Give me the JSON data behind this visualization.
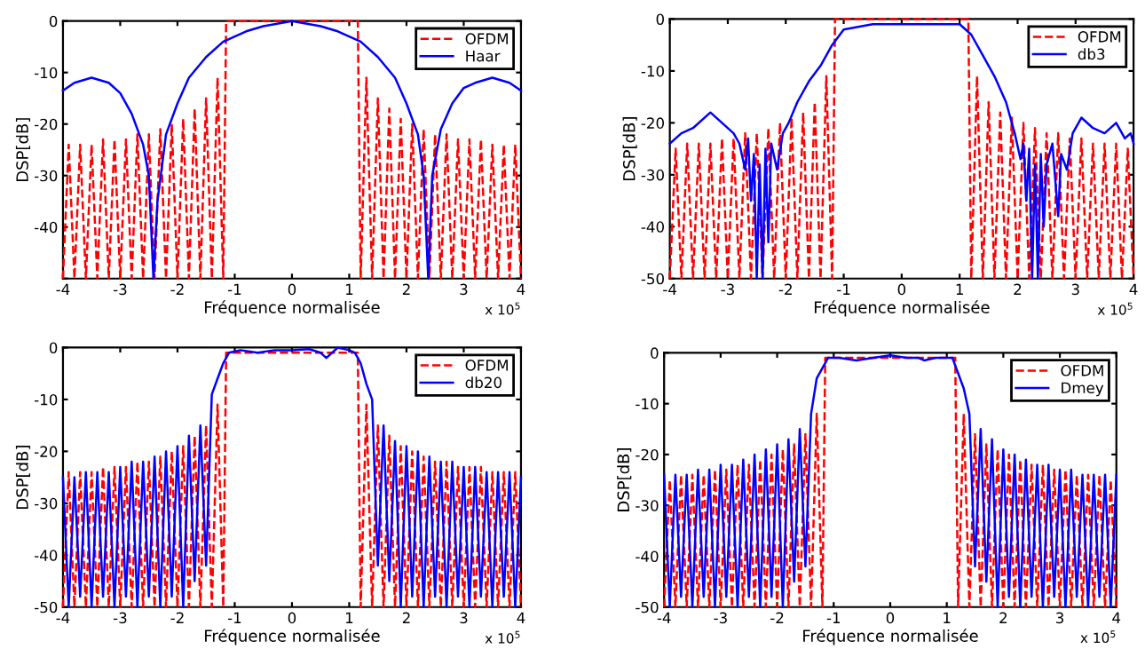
{
  "chart_data": [
    {
      "type": "line",
      "xlabel": "Fréquence normalisée",
      "ylabel": "DSP[dB]",
      "xlim": [
        -4,
        4
      ],
      "xticks": [
        -4,
        -3,
        -2,
        -1,
        0,
        1,
        2,
        3,
        4
      ],
      "ylim": [
        -50,
        0
      ],
      "yticks": [
        {
          "value": -50,
          "label": null
        },
        -40,
        -30,
        -20,
        -10,
        0
      ],
      "grid": false,
      "legend": "top right",
      "annotations": [
        "x 10$^{5}$"
      ],
      "series": [
        {
          "name": "OFDM",
          "color": "#ff0000",
          "line_style": "dashed",
          "x": [
            -4.0,
            -3.9,
            -3.8,
            -3.7,
            -3.6,
            -3.5,
            -3.4,
            -3.3,
            -3.2,
            -3.1,
            -3.0,
            -2.9,
            -2.8,
            -2.7,
            -2.6,
            -2.5,
            -2.4,
            -2.3,
            -2.2,
            -2.1,
            -2.0,
            -1.9,
            -1.8,
            -1.7,
            -1.6,
            -1.5,
            -1.4,
            -1.3,
            -1.2,
            -1.15,
            0,
            1.15,
            1.2,
            1.3,
            1.4,
            1.5,
            1.6,
            1.7,
            1.8,
            1.9,
            2.0,
            2.1,
            2.2,
            2.3,
            2.4,
            2.5,
            2.6,
            2.7,
            2.8,
            2.9,
            3.0,
            3.1,
            3.2,
            3.3,
            3.4,
            3.5,
            3.6,
            3.7,
            3.8,
            3.9,
            4.0
          ],
          "values": [
            -50,
            -24,
            -50,
            -24,
            -50,
            -24,
            -50,
            -23,
            -50,
            -23,
            -50,
            -23,
            -50,
            -22,
            -50,
            -22,
            -50,
            -21,
            -50,
            -20,
            -50,
            -19,
            -50,
            -17,
            -50,
            -15,
            -50,
            -11,
            -50,
            0,
            0,
            0,
            -50,
            -11,
            -50,
            -15,
            -50,
            -17,
            -50,
            -19,
            -50,
            -20,
            -50,
            -21,
            -50,
            -22,
            -50,
            -22,
            -50,
            -23,
            -50,
            -23,
            -50,
            -23,
            -50,
            -24,
            -50,
            -24,
            -50,
            -24,
            -50
          ]
        },
        {
          "name": "Haar",
          "color": "#0000ff",
          "line_style": "solid",
          "x": [
            -4.0,
            -3.8,
            -3.5,
            -3.2,
            -3.0,
            -2.8,
            -2.6,
            -2.5,
            -2.42,
            -2.35,
            -2.2,
            -2.0,
            -1.8,
            -1.5,
            -1.2,
            -1.0,
            -0.8,
            -0.5,
            0,
            0.5,
            0.8,
            1.0,
            1.2,
            1.5,
            1.8,
            2.0,
            2.2,
            2.3,
            2.38,
            2.45,
            2.6,
            2.8,
            3.0,
            3.2,
            3.5,
            3.8,
            4.0
          ],
          "values": [
            -13.5,
            -12,
            -11,
            -12,
            -14,
            -18,
            -24,
            -30,
            -50,
            -35,
            -22,
            -16,
            -11,
            -7,
            -4,
            -3,
            -2,
            -1,
            0,
            -1,
            -2,
            -3,
            -4,
            -7,
            -11,
            -16,
            -22,
            -30,
            -50,
            -30,
            -21,
            -16,
            -13,
            -12,
            -11,
            -12,
            -13.5
          ]
        }
      ]
    },
    {
      "type": "line",
      "xlabel": "Fréquence normalisée",
      "ylabel": "DSP[dB]",
      "xlim": [
        -4,
        4
      ],
      "xticks": [
        -4,
        -3,
        -2,
        -1,
        0,
        1,
        2,
        3,
        4
      ],
      "ylim": [
        -50,
        0
      ],
      "yticks": [
        -50,
        -40,
        -30,
        -20,
        -10,
        0
      ],
      "grid": false,
      "legend": "top right",
      "annotations": [
        "x 10$^{5}$"
      ],
      "series": [
        {
          "name": "OFDM",
          "color": "#ff0000",
          "line_style": "dashed",
          "x": [
            -4.0,
            -3.9,
            -3.8,
            -3.7,
            -3.6,
            -3.5,
            -3.4,
            -3.3,
            -3.2,
            -3.1,
            -3.0,
            -2.9,
            -2.8,
            -2.7,
            -2.6,
            -2.5,
            -2.4,
            -2.3,
            -2.2,
            -2.1,
            -2.0,
            -1.9,
            -1.8,
            -1.7,
            -1.6,
            -1.5,
            -1.4,
            -1.3,
            -1.2,
            -1.15,
            0,
            1.15,
            1.2,
            1.3,
            1.4,
            1.5,
            1.6,
            1.7,
            1.8,
            1.9,
            2.0,
            2.1,
            2.2,
            2.3,
            2.4,
            2.5,
            2.6,
            2.7,
            2.8,
            2.9,
            3.0,
            3.1,
            3.2,
            3.3,
            3.4,
            3.5,
            3.6,
            3.7,
            3.8,
            3.9,
            4.0
          ],
          "values": [
            -50,
            -25,
            -50,
            -24,
            -50,
            -24,
            -50,
            -24,
            -50,
            -23,
            -50,
            -23,
            -50,
            -22,
            -50,
            -22,
            -50,
            -21,
            -50,
            -20,
            -50,
            -19,
            -50,
            -18,
            -50,
            -16,
            -50,
            -11,
            -50,
            0,
            0,
            0,
            -50,
            -11,
            -50,
            -16,
            -50,
            -18,
            -50,
            -19,
            -50,
            -20,
            -50,
            -21,
            -50,
            -22,
            -50,
            -22,
            -50,
            -23,
            -50,
            -23,
            -50,
            -24,
            -50,
            -24,
            -50,
            -24,
            -50,
            -25,
            -50
          ]
        },
        {
          "name": "db3",
          "color": "#0000ff",
          "line_style": "solid",
          "x": [
            -4.0,
            -3.8,
            -3.6,
            -3.3,
            -3.1,
            -2.9,
            -2.8,
            -2.7,
            -2.65,
            -2.6,
            -2.55,
            -2.5,
            -2.45,
            -2.4,
            -2.35,
            -2.3,
            -2.25,
            -2.15,
            -2.05,
            -1.95,
            -1.8,
            -1.6,
            -1.4,
            -1.2,
            -1.0,
            -0.5,
            0,
            0.5,
            1.0,
            1.2,
            1.4,
            1.6,
            1.8,
            1.95,
            2.05,
            2.1,
            2.15,
            2.2,
            2.25,
            2.3,
            2.35,
            2.4,
            2.45,
            2.5,
            2.6,
            2.7,
            2.75,
            2.85,
            2.95,
            3.1,
            3.3,
            3.5,
            3.7,
            3.85,
            3.95,
            4.0
          ],
          "values": [
            -24,
            -22,
            -21,
            -18,
            -20,
            -22,
            -24,
            -29,
            -23,
            -35,
            -26,
            -50,
            -28,
            -50,
            -25,
            -43,
            -24,
            -29,
            -22,
            -20,
            -16,
            -12,
            -9,
            -5,
            -2,
            -1,
            -1,
            -1,
            -1,
            -3,
            -7,
            -11,
            -16,
            -22,
            -27,
            -24,
            -35,
            -25,
            -50,
            -28,
            -50,
            -26,
            -40,
            -28,
            -24,
            -38,
            -26,
            -29,
            -22,
            -19,
            -21,
            -22,
            -20,
            -23,
            -22,
            -24
          ]
        }
      ]
    },
    {
      "type": "line",
      "xlabel": "Fréquence normalisée",
      "ylabel": "DSP[dB]",
      "xlim": [
        -4,
        4
      ],
      "xticks": [
        -4,
        -3,
        -2,
        -1,
        0,
        1,
        2,
        3,
        4
      ],
      "ylim": [
        -50,
        0
      ],
      "yticks": [
        -50,
        -40,
        -30,
        -20,
        -10,
        0
      ],
      "grid": false,
      "legend": "top right",
      "annotations": [
        "x 10$^{5}$"
      ],
      "series": [
        {
          "name": "OFDM",
          "color": "#ff0000",
          "line_style": "dashed",
          "x": [
            -4.0,
            -3.9,
            -3.8,
            -3.7,
            -3.6,
            -3.5,
            -3.4,
            -3.3,
            -3.2,
            -3.1,
            -3.0,
            -2.9,
            -2.8,
            -2.7,
            -2.6,
            -2.5,
            -2.4,
            -2.3,
            -2.2,
            -2.1,
            -2.0,
            -1.9,
            -1.8,
            -1.7,
            -1.6,
            -1.5,
            -1.4,
            -1.3,
            -1.2,
            -1.15,
            0,
            1.15,
            1.2,
            1.3,
            1.4,
            1.5,
            1.6,
            1.7,
            1.8,
            1.9,
            2.0,
            2.1,
            2.2,
            2.3,
            2.4,
            2.5,
            2.6,
            2.7,
            2.8,
            2.9,
            3.0,
            3.1,
            3.2,
            3.3,
            3.4,
            3.5,
            3.6,
            3.7,
            3.8,
            3.9,
            4.0
          ],
          "values": [
            -50,
            -24,
            -50,
            -24,
            -50,
            -24,
            -50,
            -23,
            -50,
            -23,
            -50,
            -23,
            -50,
            -22,
            -50,
            -22,
            -50,
            -21,
            -50,
            -20,
            -50,
            -19,
            -50,
            -17,
            -50,
            -15,
            -50,
            -11,
            -50,
            -1,
            -1,
            -1,
            -50,
            -11,
            -50,
            -15,
            -50,
            -17,
            -50,
            -19,
            -50,
            -20,
            -50,
            -21,
            -50,
            -22,
            -50,
            -22,
            -50,
            -23,
            -50,
            -23,
            -50,
            -23,
            -50,
            -24,
            -50,
            -24,
            -50,
            -24,
            -50
          ]
        },
        {
          "name": "db20",
          "color": "#0000ff",
          "line_style": "solid",
          "x": [
            -4.0,
            -3.9,
            -3.8,
            -3.7,
            -3.6,
            -3.5,
            -3.4,
            -3.3,
            -3.2,
            -3.1,
            -3.0,
            -2.9,
            -2.8,
            -2.7,
            -2.6,
            -2.5,
            -2.4,
            -2.3,
            -2.2,
            -2.1,
            -2.0,
            -1.9,
            -1.8,
            -1.7,
            -1.6,
            -1.5,
            -1.4,
            -1.3,
            -1.2,
            -1.1,
            -0.9,
            -0.6,
            -0.3,
            0,
            0.3,
            0.5,
            0.6,
            0.8,
            1.0,
            1.1,
            1.2,
            1.3,
            1.4,
            1.5,
            1.6,
            1.7,
            1.8,
            1.9,
            2.0,
            2.1,
            2.2,
            2.3,
            2.4,
            2.5,
            2.6,
            2.7,
            2.8,
            2.9,
            3.0,
            3.1,
            3.2,
            3.3,
            3.4,
            3.5,
            3.6,
            3.7,
            3.8,
            3.9,
            4.0
          ],
          "values": [
            -25,
            -50,
            -25,
            -48,
            -24,
            -50,
            -24,
            -48,
            -24,
            -50,
            -23,
            -48,
            -22,
            -50,
            -22,
            -48,
            -21,
            -50,
            -20,
            -48,
            -19,
            -50,
            -17,
            -45,
            -15,
            -42,
            -9,
            -6,
            -3,
            -1,
            -0.5,
            -1,
            -0.5,
            -0.5,
            -0.3,
            -1,
            -2,
            0,
            -0.5,
            -1,
            -3,
            -7,
            -10,
            -42,
            -15,
            -45,
            -18,
            -50,
            -19,
            -48,
            -20,
            -50,
            -21,
            -48,
            -22,
            -50,
            -22,
            -48,
            -23,
            -50,
            -23,
            -48,
            -24,
            -50,
            -24,
            -48,
            -24,
            -50,
            -25
          ]
        }
      ]
    },
    {
      "type": "line",
      "xlabel": "Fréquence normalisée",
      "ylabel": "DSP[dB]",
      "xlim": [
        -4,
        4
      ],
      "xticks": [
        -4,
        -3,
        -2,
        -1,
        0,
        1,
        2,
        3,
        4
      ],
      "ylim": [
        -50,
        0
      ],
      "yticks": [
        -50,
        -40,
        -30,
        -20,
        -10,
        0
      ],
      "grid": false,
      "legend": "top right",
      "annotations": [
        "x 10$^{5}$"
      ],
      "series": [
        {
          "name": "OFDM",
          "color": "#ff0000",
          "line_style": "dashed",
          "x": [
            -4.0,
            -3.9,
            -3.8,
            -3.7,
            -3.6,
            -3.5,
            -3.4,
            -3.3,
            -3.2,
            -3.1,
            -3.0,
            -2.9,
            -2.8,
            -2.7,
            -2.6,
            -2.5,
            -2.4,
            -2.3,
            -2.2,
            -2.1,
            -2.0,
            -1.9,
            -1.8,
            -1.7,
            -1.6,
            -1.5,
            -1.4,
            -1.3,
            -1.2,
            -1.15,
            0,
            1.15,
            1.2,
            1.3,
            1.4,
            1.5,
            1.6,
            1.7,
            1.8,
            1.9,
            2.0,
            2.1,
            2.2,
            2.3,
            2.4,
            2.5,
            2.6,
            2.7,
            2.8,
            2.9,
            3.0,
            3.1,
            3.2,
            3.3,
            3.4,
            3.5,
            3.6,
            3.7,
            3.8,
            3.9,
            4.0
          ],
          "values": [
            -50,
            -25,
            -50,
            -24,
            -50,
            -24,
            -50,
            -24,
            -50,
            -23,
            -50,
            -23,
            -50,
            -22,
            -50,
            -22,
            -50,
            -21,
            -50,
            -20,
            -50,
            -19,
            -50,
            -18,
            -50,
            -16,
            -50,
            -12,
            -50,
            -1,
            -1,
            -1,
            -50,
            -12,
            -50,
            -16,
            -50,
            -18,
            -50,
            -19,
            -50,
            -20,
            -50,
            -21,
            -50,
            -22,
            -50,
            -22,
            -50,
            -23,
            -50,
            -23,
            -50,
            -24,
            -50,
            -24,
            -50,
            -24,
            -50,
            -25,
            -50
          ]
        },
        {
          "name": "Dmey",
          "color": "#0000ff",
          "line_style": "solid",
          "x": [
            -4.0,
            -3.9,
            -3.8,
            -3.7,
            -3.6,
            -3.5,
            -3.4,
            -3.3,
            -3.2,
            -3.1,
            -3.0,
            -2.9,
            -2.8,
            -2.7,
            -2.6,
            -2.5,
            -2.4,
            -2.3,
            -2.2,
            -2.1,
            -2.0,
            -1.9,
            -1.8,
            -1.7,
            -1.6,
            -1.5,
            -1.4,
            -1.3,
            -1.2,
            -1.1,
            -0.9,
            -0.6,
            -0.3,
            0,
            0.3,
            0.5,
            0.6,
            0.8,
            1.0,
            1.1,
            1.2,
            1.3,
            1.4,
            1.5,
            1.6,
            1.7,
            1.8,
            1.9,
            2.0,
            2.1,
            2.2,
            2.3,
            2.4,
            2.5,
            2.6,
            2.7,
            2.8,
            2.9,
            3.0,
            3.1,
            3.2,
            3.3,
            3.4,
            3.5,
            3.6,
            3.7,
            3.8,
            3.9,
            4.0
          ],
          "values": [
            -24,
            -50,
            -24,
            -48,
            -24,
            -50,
            -23,
            -48,
            -23,
            -50,
            -22,
            -48,
            -22,
            -50,
            -21,
            -48,
            -20,
            -50,
            -19,
            -48,
            -18,
            -50,
            -17,
            -45,
            -15,
            -42,
            -12,
            -5,
            -3,
            -1,
            -1,
            -1.5,
            -1,
            -0.5,
            -1,
            -1,
            -1.5,
            -1,
            -1,
            -1,
            -4,
            -7,
            -12,
            -42,
            -15,
            -45,
            -17,
            -50,
            -19,
            -48,
            -20,
            -50,
            -21,
            -48,
            -22,
            -50,
            -22,
            -48,
            -23,
            -50,
            -23,
            -48,
            -24,
            -50,
            -24,
            -48,
            -24,
            -50,
            -24
          ]
        }
      ]
    }
  ]
}
